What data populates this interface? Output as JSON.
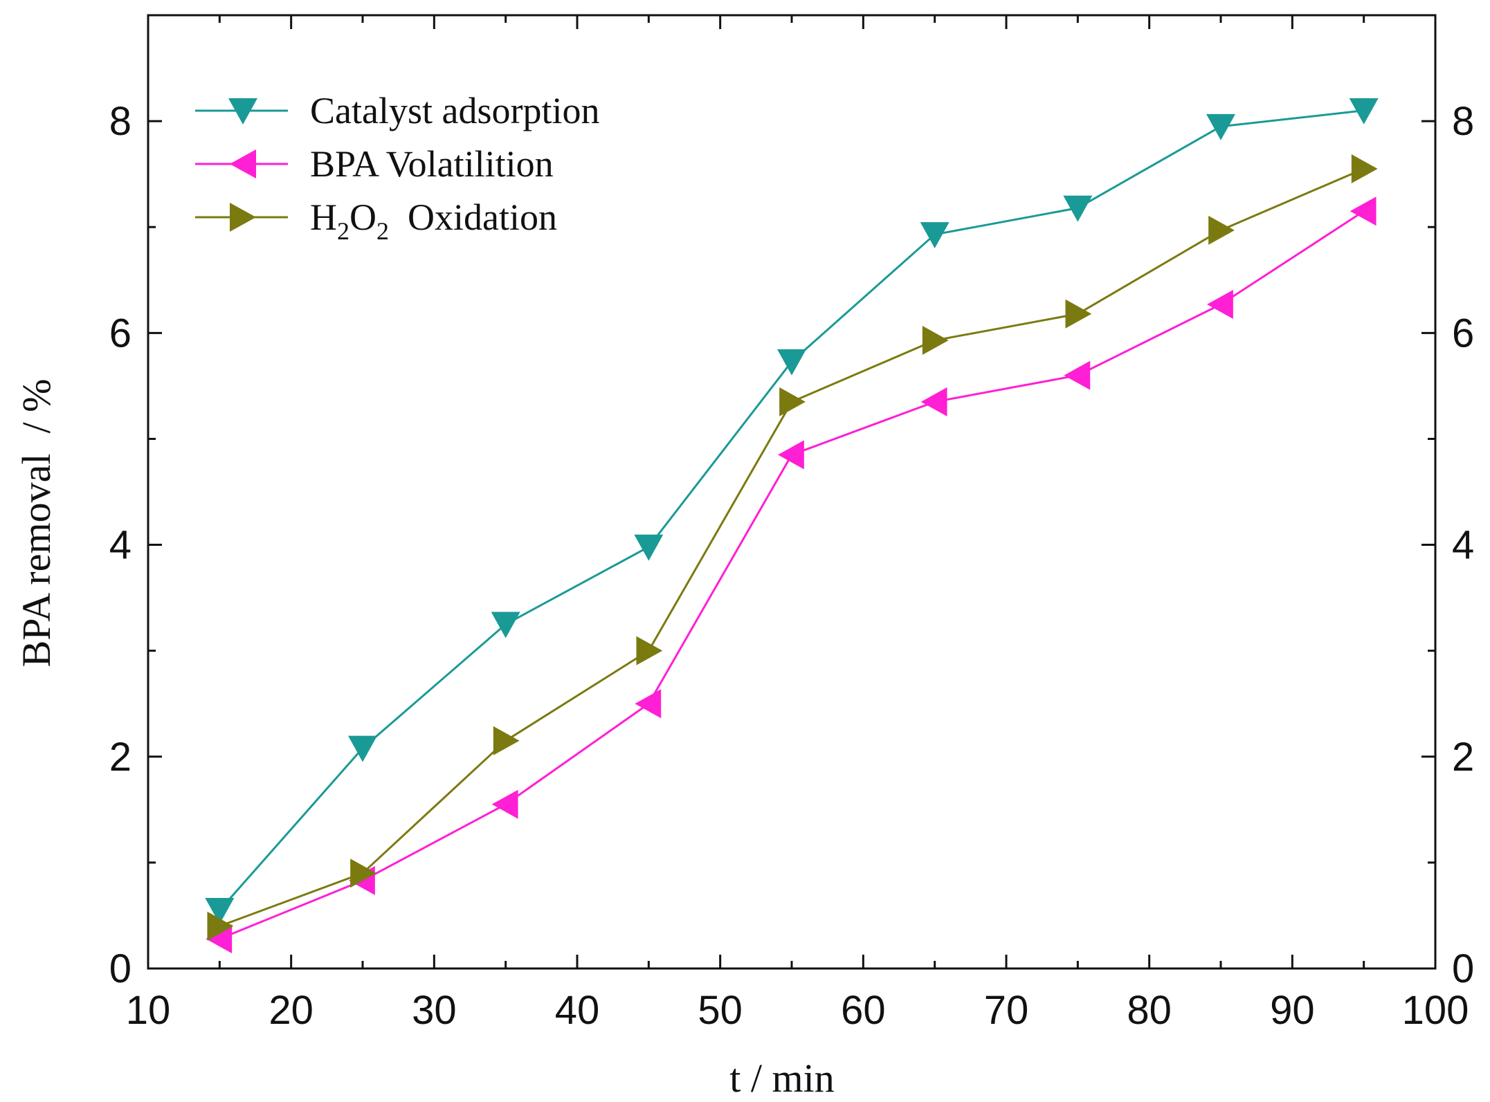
{
  "chart_data": {
    "type": "line",
    "xlabel": "t / min",
    "ylabel": "BPA removal  / %",
    "xlim": [
      10,
      100
    ],
    "ylim": [
      0,
      9
    ],
    "x_ticks": [
      10,
      20,
      30,
      40,
      50,
      60,
      70,
      80,
      90,
      100
    ],
    "y_ticks": [
      0,
      2,
      4,
      6,
      8
    ],
    "right_axis_mirrored": true,
    "grid": false,
    "legend_position": "top-left",
    "x": [
      15,
      25,
      35,
      45,
      55,
      65,
      75,
      85,
      95
    ],
    "series": [
      {
        "name": "Catalyst adsorption",
        "color": "#1a9a96",
        "marker": "triangle-down",
        "values": [
          0.55,
          2.08,
          3.25,
          3.98,
          5.73,
          6.93,
          7.18,
          7.95,
          8.1
        ]
      },
      {
        "name": "BPA Volatilition",
        "color": "#ff1fd4",
        "marker": "triangle-left",
        "values": [
          0.28,
          0.83,
          1.55,
          2.5,
          4.85,
          5.35,
          5.6,
          6.27,
          7.15
        ]
      },
      {
        "name_parts": [
          "H",
          "2",
          "O",
          "2",
          "  Oxidation"
        ],
        "color": "#7b7a10",
        "marker": "triangle-right",
        "values": [
          0.4,
          0.9,
          2.15,
          3.0,
          5.35,
          5.93,
          6.18,
          6.97,
          7.55
        ]
      }
    ]
  }
}
